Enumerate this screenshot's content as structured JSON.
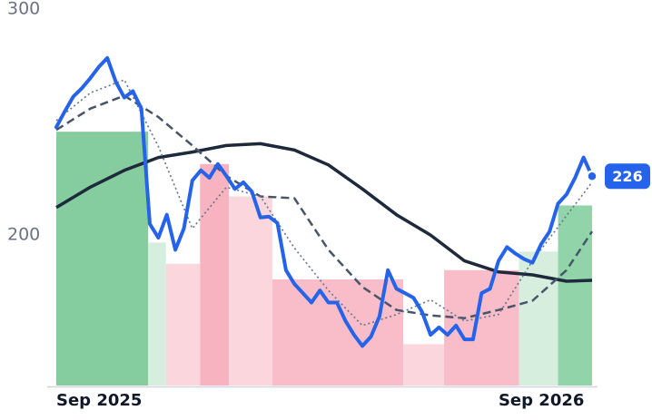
{
  "chart_data": {
    "type": "line",
    "x": [
      0,
      1,
      2,
      3,
      4,
      5,
      6,
      7,
      8,
      9,
      10,
      11,
      12,
      13,
      14,
      15,
      16,
      17,
      18,
      19,
      20,
      21,
      22,
      23,
      24,
      25,
      26,
      27,
      28,
      29,
      30,
      31,
      32,
      33,
      34,
      35,
      36,
      37,
      38,
      39,
      40,
      41,
      42,
      43,
      44,
      45,
      46,
      47,
      48,
      49,
      50,
      51,
      52,
      53,
      54,
      55,
      56,
      57,
      58,
      59,
      60,
      61,
      62,
      63
    ],
    "series": [
      {
        "color": "#2563eb",
        "values": [
          247.7,
          254.7,
          261.2,
          264.9,
          269.4,
          274.3,
          278.3,
          267.7,
          260.8,
          263.6,
          255.9,
          204.9,
          198.8,
          209,
          193.5,
          202.9,
          224.1,
          228.6,
          225.3,
          231.4,
          226.1,
          220.4,
          223.3,
          219.2,
          207.8,
          208.2,
          205.3,
          184.5,
          178.4,
          174.3,
          170.2,
          175.5,
          170.2,
          170.2,
          162.1,
          155.9,
          151,
          155.1,
          164.1,
          184.5,
          176.3,
          174.3,
          172.3,
          166.1,
          155.9,
          159.2,
          155.9,
          160,
          153.9,
          153.9,
          174.3,
          176.3,
          188.6,
          194.7,
          191.8,
          189.4,
          187.8,
          195.9,
          201.6,
          213.9,
          218,
          225.3,
          234.3,
          226
        ]
      }
    ],
    "moving_averages": [
      {
        "color": "#1e293b",
        "style": "solid",
        "x": [
          0,
          4,
          8,
          12,
          16,
          20,
          24,
          28,
          32,
          36,
          40,
          44,
          48,
          52,
          56,
          60,
          63
        ],
        "values": [
          212.2,
          221.2,
          228.6,
          234.3,
          236.7,
          239.6,
          240.4,
          237.6,
          231,
          220.4,
          209,
          200,
          188.6,
          183.7,
          182.4,
          179.6,
          180
        ]
      },
      {
        "color": "#475569",
        "style": "dashed",
        "x": [
          0,
          4,
          8,
          12,
          16,
          20,
          24,
          28,
          32,
          36,
          40,
          44,
          48,
          52,
          56,
          60,
          63
        ],
        "values": [
          246.5,
          255.9,
          261.6,
          252.2,
          239.6,
          226.1,
          217.1,
          216.3,
          193.5,
          177.1,
          166.9,
          164.5,
          163.3,
          166.9,
          171,
          184.5,
          201.6
        ]
      },
      {
        "color": "#64748b",
        "style": "dotted",
        "x": [
          0,
          4,
          8,
          12,
          16,
          20,
          24,
          28,
          32,
          36,
          40,
          44,
          48,
          52,
          56,
          60,
          63
        ],
        "values": [
          250.6,
          262.9,
          268.6,
          239.2,
          202.9,
          221.2,
          217.1,
          194.3,
          175.5,
          160,
          164.9,
          171.4,
          162,
          164.9,
          188.6,
          208.6,
          223.3
        ]
      }
    ],
    "bands": {
      "start": [
        0,
        10.8,
        12.9,
        16.9,
        20.3,
        25.4,
        40.8,
        45.6,
        54.4,
        59
      ],
      "end": [
        10.8,
        12.9,
        16.9,
        20.3,
        25.4,
        40.8,
        45.6,
        54.4,
        59,
        63
      ],
      "values": [
        245.7,
        196.7,
        187.3,
        231.4,
        217.1,
        180.4,
        151.8,
        184.5,
        192.7,
        213.1
      ],
      "colors": [
        "#85cc9e",
        "#d5eedd",
        "#fcd6dd",
        "#f8b3c0",
        "#fcd6dd",
        "#f8bdc8",
        "#fcd6dd",
        "#f8bdc8",
        "#d5eedd",
        "#92d4a9"
      ]
    },
    "xlim": [
      0,
      63
    ],
    "ylim": [
      133.5,
      302
    ],
    "yticks": [
      200,
      300
    ],
    "xticks": [
      {
        "value": 0,
        "label": "Sep 2025"
      },
      {
        "value": 52,
        "label": "Sep 2026"
      }
    ]
  }
}
